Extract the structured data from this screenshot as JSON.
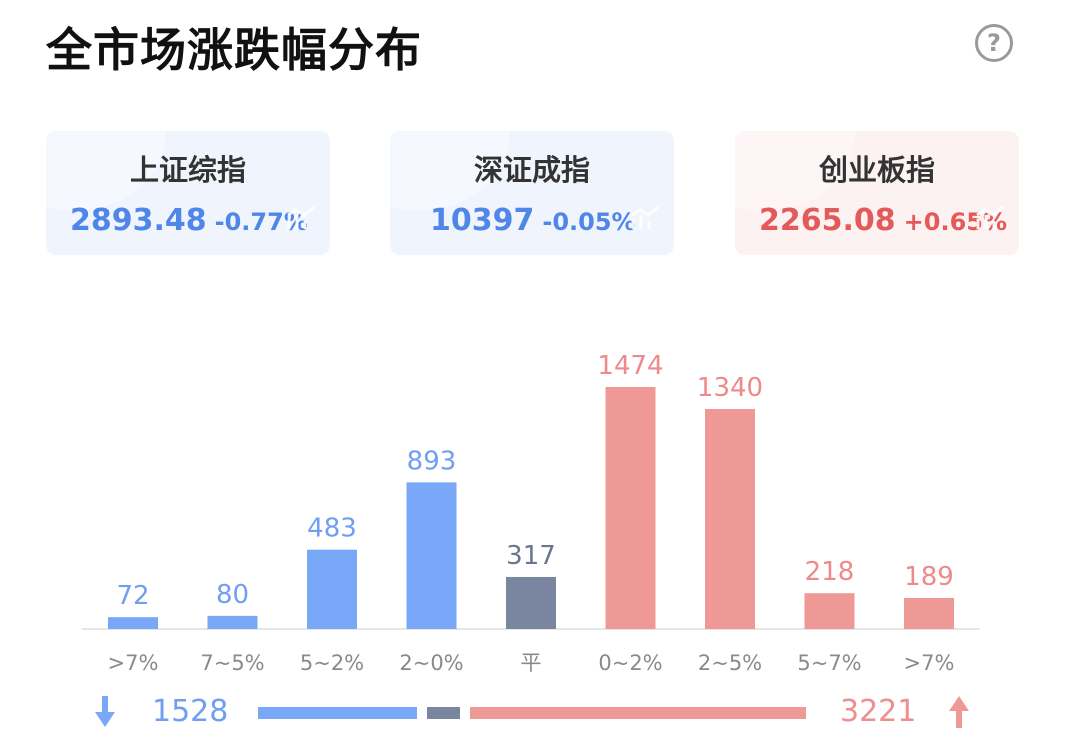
{
  "header": {
    "title": "全市场涨跌幅分布",
    "help_icon": "?"
  },
  "indices": [
    {
      "name": "上证综指",
      "value": "2893.48",
      "change": "-0.77%",
      "trend": "down",
      "color": "#4f86e8"
    },
    {
      "name": "深证成指",
      "value": "10397",
      "change": "-0.05%",
      "trend": "down",
      "color": "#4f86e8"
    },
    {
      "name": "创业板指",
      "value": "2265.08",
      "change": "+0.65%",
      "trend": "up",
      "color": "#e35a5a"
    }
  ],
  "chart_data": {
    "type": "bar",
    "categories": [
      ">7%",
      "7~5%",
      "5~2%",
      "2~0%",
      "平",
      "0~2%",
      "2~5%",
      "5~7%",
      ">7%"
    ],
    "values": [
      72,
      80,
      483,
      893,
      317,
      1474,
      1340,
      218,
      189
    ],
    "bar_colors": [
      "#7aa8f8",
      "#7aa8f8",
      "#7aa8f8",
      "#7aa8f8",
      "#7a85a0",
      "#ef9996",
      "#ef9996",
      "#ef9996",
      "#ef9996"
    ],
    "label_colors": [
      "#6f9ef2",
      "#6f9ef2",
      "#6f9ef2",
      "#6f9ef2",
      "#6b7690",
      "#ee8a8a",
      "#ee8a8a",
      "#ee8a8a",
      "#ee8a8a"
    ],
    "ylim": [
      0,
      1474
    ],
    "grid": false
  },
  "summary": {
    "down_count": "1528",
    "up_count": "3221",
    "flat_count": 317,
    "down_color": "#7aa8f8",
    "flat_color": "#7a85a0",
    "up_color": "#ef9996"
  }
}
